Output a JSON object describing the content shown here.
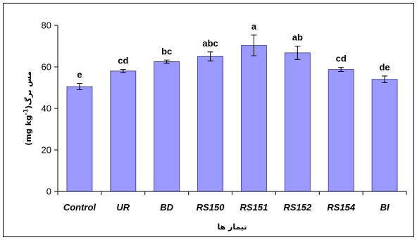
{
  "chart_data": {
    "type": "bar",
    "categories": [
      "Control",
      "UR",
      "BD",
      "RS150",
      "RS151",
      "RS152",
      "RS154",
      "BI"
    ],
    "values": [
      50.5,
      58,
      62.5,
      65,
      70.3,
      66.8,
      58.8,
      54
    ],
    "errors": [
      1.5,
      0.8,
      0.8,
      2.2,
      5.0,
      3.2,
      1.0,
      1.6
    ],
    "letters": [
      "e",
      "cd",
      "bc",
      "abc",
      "a",
      "ab",
      "cd",
      "de"
    ],
    "xlabel": "تیمار ها",
    "ylabel_unit": "(mg kg",
    "ylabel_sup": "-1",
    "ylabel_tail": ")مس برگ",
    "ylim": [
      0,
      80
    ],
    "yticks": [
      0,
      20,
      40,
      60,
      80
    ],
    "bar_color": "#9999ff",
    "bar_stroke": "#333399",
    "grid": false,
    "legend": "none"
  }
}
